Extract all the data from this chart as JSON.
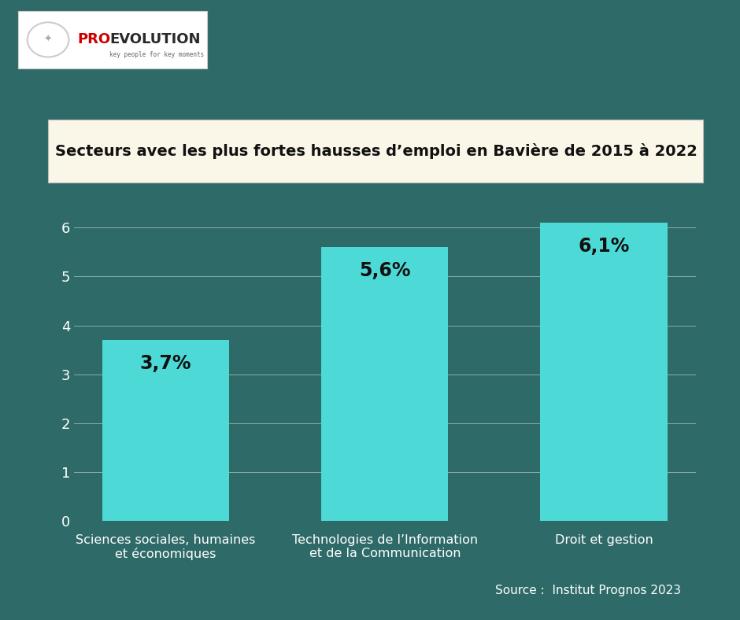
{
  "title": "Secteurs avec les plus fortes hausses d’emploi en Bavière de 2015 à 2022",
  "background_color": "#2e6b68",
  "bar_color": "#4dd9d5",
  "categories": [
    "Sciences sociales, humaines\net économiques",
    "Technologies de l’Information\net de la Communication",
    "Droit et gestion"
  ],
  "values": [
    3.7,
    5.6,
    6.1
  ],
  "labels": [
    "3,7%",
    "5,6%",
    "6,1%"
  ],
  "ylabel_ticks": [
    0,
    1,
    2,
    3,
    4,
    5,
    6
  ],
  "ylim": [
    0,
    6.6
  ],
  "source_text": "Source :  Institut Prognos 2023",
  "title_box_color": "#faf6e8",
  "title_fontsize": 14,
  "label_fontsize": 17,
  "tick_fontsize": 13,
  "category_fontsize": 11.5,
  "source_fontsize": 11
}
